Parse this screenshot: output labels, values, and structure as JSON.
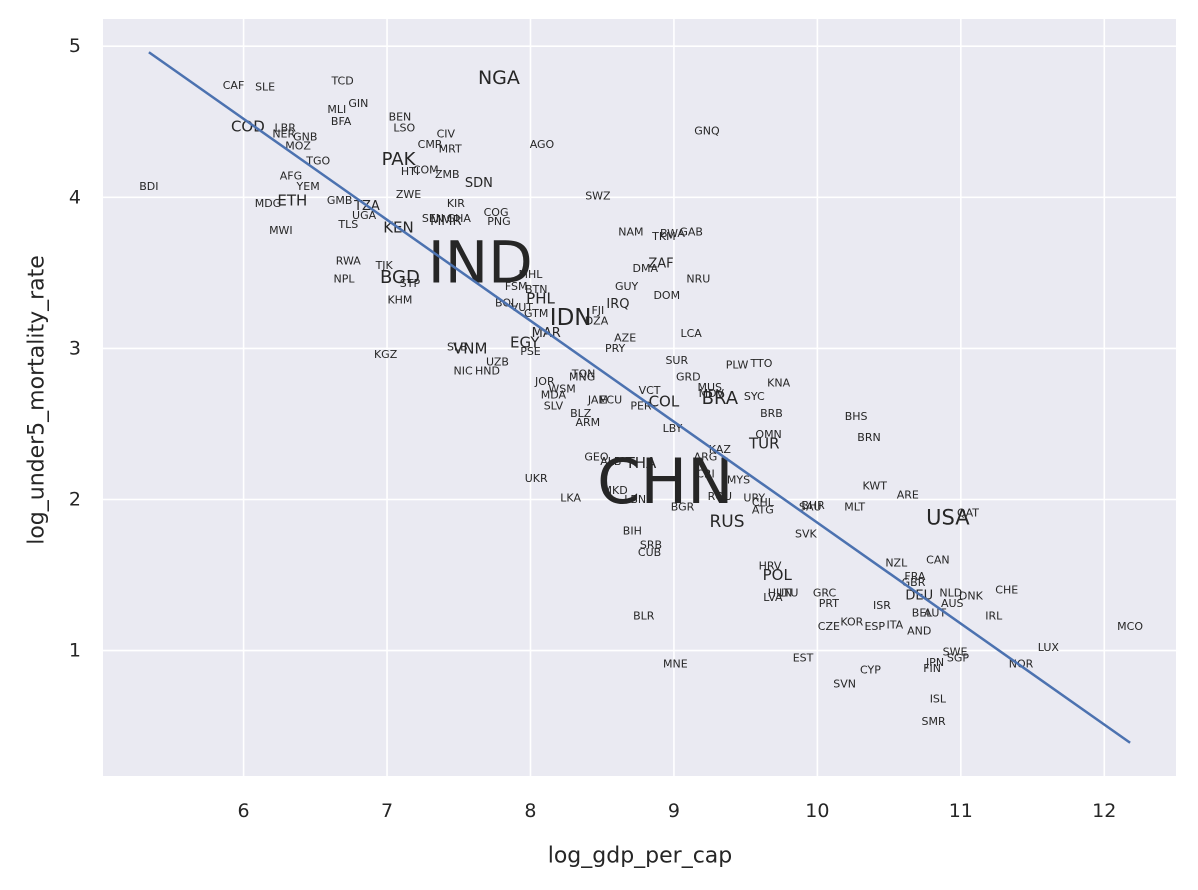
{
  "chart_data": {
    "type": "scatter",
    "xlabel": "log_gdp_per_cap",
    "ylabel": "log_under5_mortality_rate",
    "xlim": [
      5.02,
      12.5
    ],
    "ylim": [
      0.17,
      5.18
    ],
    "xticks": [
      6,
      7,
      8,
      9,
      10,
      11,
      12
    ],
    "yticks": [
      1,
      2,
      3,
      4,
      5
    ],
    "grid": true,
    "background": "#eaeaf2",
    "text_color": "#262626",
    "trendline": {
      "color": "#4c72b0",
      "x": [
        5.34,
        12.18
      ],
      "y": [
        4.96,
        0.39
      ]
    },
    "labels": [
      "CAF",
      "SLE",
      "TCD",
      "NGA",
      "GIN",
      "MLI",
      "BFA",
      "BEN",
      "LSO",
      "CIV",
      "CMR",
      "MRT",
      "AGO",
      "GNQ",
      "COD",
      "LBR",
      "NER",
      "GNB",
      "MOZ",
      "TGO",
      "PAK",
      "HTI",
      "COM",
      "ZMB",
      "SDN",
      "AFG",
      "YEM",
      "BDI",
      "ZWE",
      "SWZ",
      "GMB",
      "MDG",
      "ETH",
      "TZA",
      "KIR",
      "UGA",
      "COG",
      "SEN",
      "MMR",
      "GHA",
      "PNG",
      "TLS",
      "KEN",
      "MWI",
      "NAM",
      "BWA",
      "GAB",
      "TKM",
      "IND",
      "RWA",
      "TJK",
      "DMA",
      "ZAF",
      "BGD",
      "NPL",
      "MHL",
      "STP",
      "NRU",
      "FSM",
      "BTN",
      "GUY",
      "PHL",
      "KHM",
      "DOM",
      "BOL",
      "VUT",
      "IRQ",
      "FJI",
      "GTM",
      "IDN",
      "DZA",
      "LCA",
      "AZE",
      "MAR",
      "EGY",
      "PSE",
      "PRY",
      "KGZ",
      "SLB",
      "VNM",
      "UZB",
      "SUR",
      "PLW",
      "TTO",
      "NIC",
      "HND",
      "TON",
      "JOR",
      "WSM",
      "MNG",
      "GRD",
      "KNA",
      "MUS",
      "MDV",
      "VCT",
      "BRA",
      "SYC",
      "COL",
      "MDA",
      "JAM",
      "ECU",
      "SLV",
      "PER",
      "BRB",
      "BLZ",
      "ARM",
      "LBY",
      "BHS",
      "OMN",
      "BRN",
      "TUR",
      "KAZ",
      "GEO",
      "ALB",
      "ARG",
      "THA",
      "CHN",
      "UKR",
      "KWT",
      "CRI",
      "MYS",
      "MKD",
      "LKA",
      "LBN",
      "ARE",
      "ROU",
      "URY",
      "CHL",
      "ATG",
      "BGR",
      "SAU",
      "BHR",
      "MLT",
      "USA",
      "QAT",
      "RUS",
      "SVK",
      "BIH",
      "SRB",
      "CUB",
      "NZL",
      "CAN",
      "HRV",
      "POL",
      "FRA",
      "GBR",
      "CHE",
      "HUN",
      "LTU",
      "LVA",
      "GRC",
      "DEU",
      "NLD",
      "DNK",
      "PRT",
      "ISR",
      "AUS",
      "BEL",
      "AUT",
      "IRL",
      "BLR",
      "CZE",
      "KOR",
      "ESP",
      "ITA",
      "AND",
      "MCO",
      "SWE",
      "LUX",
      "EST",
      "MNE",
      "JPN",
      "SGP",
      "NOR",
      "CYP",
      "FIN",
      "SVN",
      "ISL",
      "SMR"
    ],
    "x": [
      5.93,
      6.15,
      6.69,
      7.78,
      6.8,
      6.65,
      6.68,
      7.09,
      7.12,
      7.41,
      7.3,
      7.44,
      8.08,
      9.23,
      6.03,
      6.29,
      6.28,
      6.43,
      6.38,
      6.52,
      7.08,
      7.16,
      7.27,
      7.42,
      7.64,
      6.33,
      6.45,
      5.34,
      7.15,
      8.47,
      6.67,
      6.17,
      6.34,
      6.86,
      7.48,
      6.84,
      7.76,
      7.32,
      7.41,
      7.5,
      7.78,
      6.73,
      7.08,
      6.26,
      8.7,
      8.99,
      9.12,
      8.93,
      7.65,
      6.73,
      6.98,
      8.8,
      8.91,
      7.09,
      6.7,
      8.0,
      7.16,
      9.17,
      7.9,
      8.04,
      8.67,
      8.07,
      7.09,
      8.95,
      7.83,
      7.94,
      8.61,
      8.47,
      8.04,
      8.28,
      8.46,
      9.12,
      8.66,
      8.11,
      7.96,
      8.0,
      8.59,
      6.99,
      7.49,
      7.58,
      7.77,
      9.02,
      9.44,
      9.61,
      7.53,
      7.7,
      8.37,
      8.1,
      8.22,
      8.36,
      9.1,
      9.73,
      9.25,
      9.26,
      8.83,
      9.32,
      9.56,
      8.93,
      8.16,
      8.47,
      8.56,
      8.16,
      8.77,
      9.68,
      8.35,
      8.4,
      8.99,
      10.27,
      9.66,
      10.36,
      9.63,
      9.32,
      8.46,
      8.56,
      9.22,
      8.77,
      8.94,
      8.04,
      10.4,
      9.22,
      9.45,
      8.59,
      8.28,
      8.73,
      10.63,
      9.32,
      9.56,
      9.62,
      9.62,
      9.06,
      9.95,
      9.97,
      10.26,
      10.91,
      11.05,
      9.37,
      9.92,
      8.71,
      8.84,
      8.83,
      10.55,
      10.84,
      9.67,
      9.72,
      10.68,
      10.67,
      11.32,
      9.74,
      9.8,
      9.69,
      10.05,
      10.71,
      10.93,
      11.07,
      10.08,
      10.45,
      10.94,
      10.73,
      10.82,
      11.23,
      8.79,
      10.08,
      10.24,
      10.4,
      10.54,
      10.71,
      12.18,
      10.96,
      11.61,
      9.9,
      9.01,
      10.82,
      10.98,
      11.42,
      10.37,
      10.8,
      10.19,
      10.84,
      10.81
    ],
    "values": [
      4.74,
      4.73,
      4.77,
      4.79,
      4.62,
      4.58,
      4.5,
      4.53,
      4.46,
      4.42,
      4.35,
      4.32,
      4.35,
      4.44,
      4.47,
      4.46,
      4.42,
      4.4,
      4.34,
      4.24,
      4.25,
      4.17,
      4.18,
      4.15,
      4.09,
      4.14,
      4.07,
      4.07,
      4.02,
      4.01,
      3.98,
      3.96,
      3.98,
      3.94,
      3.96,
      3.88,
      3.9,
      3.86,
      3.84,
      3.86,
      3.84,
      3.82,
      3.8,
      3.78,
      3.77,
      3.76,
      3.77,
      3.74,
      3.57,
      3.58,
      3.55,
      3.53,
      3.56,
      3.47,
      3.46,
      3.49,
      3.43,
      3.46,
      3.41,
      3.39,
      3.41,
      3.33,
      3.32,
      3.35,
      3.3,
      3.27,
      3.29,
      3.25,
      3.23,
      3.2,
      3.18,
      3.1,
      3.07,
      3.1,
      3.04,
      2.98,
      3.0,
      2.96,
      3.01,
      3.0,
      2.91,
      2.92,
      2.89,
      2.9,
      2.85,
      2.85,
      2.83,
      2.78,
      2.73,
      2.81,
      2.81,
      2.77,
      2.74,
      2.7,
      2.72,
      2.67,
      2.68,
      2.65,
      2.69,
      2.66,
      2.66,
      2.62,
      2.62,
      2.57,
      2.57,
      2.51,
      2.47,
      2.55,
      2.43,
      2.41,
      2.37,
      2.33,
      2.28,
      2.25,
      2.28,
      2.24,
      2.12,
      2.14,
      2.09,
      2.17,
      2.13,
      2.06,
      2.01,
      2.0,
      2.03,
      2.02,
      2.01,
      1.98,
      1.93,
      1.95,
      1.95,
      1.96,
      1.95,
      1.88,
      1.91,
      1.85,
      1.77,
      1.79,
      1.7,
      1.65,
      1.58,
      1.6,
      1.56,
      1.5,
      1.49,
      1.45,
      1.4,
      1.38,
      1.38,
      1.35,
      1.38,
      1.36,
      1.38,
      1.36,
      1.31,
      1.3,
      1.31,
      1.25,
      1.25,
      1.23,
      1.23,
      1.16,
      1.19,
      1.16,
      1.17,
      1.13,
      1.16,
      0.99,
      1.02,
      0.95,
      0.91,
      0.92,
      0.95,
      0.91,
      0.87,
      0.88,
      0.78,
      0.68,
      0.53
    ],
    "sizes": [
      11,
      11,
      11,
      19,
      11,
      11,
      11,
      11,
      11,
      11,
      11,
      11,
      11,
      11,
      15,
      11,
      11,
      11,
      11,
      11,
      18,
      11,
      11,
      11,
      13,
      11,
      11,
      11,
      11,
      11,
      11,
      11,
      15,
      13,
      11,
      11,
      11,
      11,
      13,
      11,
      11,
      11,
      15,
      11,
      11,
      11,
      11,
      11,
      58,
      11,
      11,
      11,
      13,
      18,
      11,
      11,
      11,
      11,
      11,
      11,
      11,
      15,
      11,
      11,
      11,
      11,
      13,
      11,
      11,
      23,
      11,
      11,
      11,
      13,
      15,
      11,
      11,
      11,
      11,
      15,
      11,
      11,
      11,
      11,
      11,
      11,
      11,
      11,
      11,
      11,
      11,
      11,
      11,
      11,
      11,
      18,
      11,
      15,
      11,
      11,
      11,
      11,
      11,
      11,
      11,
      11,
      11,
      11,
      11,
      11,
      15,
      11,
      11,
      11,
      11,
      15,
      62,
      11,
      11,
      11,
      11,
      11,
      11,
      11,
      11,
      11,
      11,
      11,
      11,
      11,
      11,
      11,
      11,
      21,
      11,
      17,
      11,
      11,
      11,
      11,
      11,
      11,
      11,
      15,
      11,
      11,
      11,
      11,
      11,
      11,
      11,
      13,
      11,
      11,
      11,
      11,
      11,
      11,
      11,
      11,
      11,
      11,
      11,
      11,
      11,
      11,
      11,
      11,
      11,
      11,
      11,
      11,
      11,
      11,
      11,
      11,
      11,
      11,
      11
    ]
  }
}
